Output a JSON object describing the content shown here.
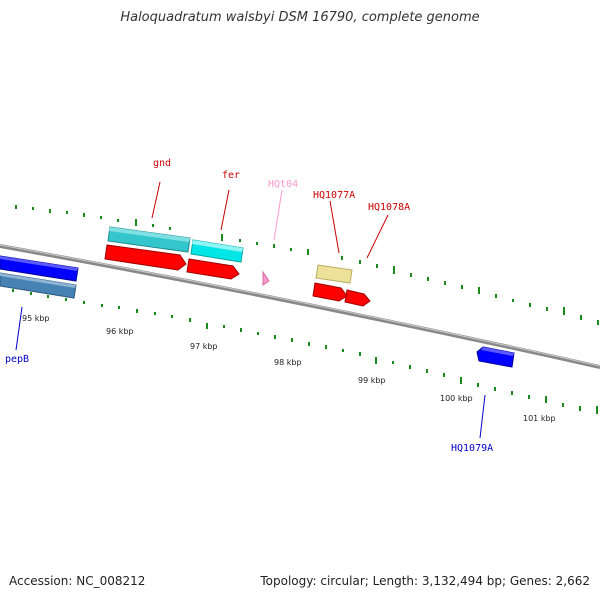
{
  "title": "Haloquadratum walsbyi DSM 16790, complete genome",
  "footer": {
    "accession": "Accession: NC_008212",
    "summary": "Topology: circular; Length: 3,132,494 bp; Genes: 2,662"
  },
  "ticks": [
    "95 kbp",
    "96 kbp",
    "97 kbp",
    "98 kbp",
    "99 kbp",
    "100 kbp",
    "101 kbp"
  ],
  "labels": {
    "gnd": "gnd",
    "fer": "fer",
    "hqt04": "HQt04",
    "hq1077a": "HQ1077A",
    "hq1078a": "HQ1078A",
    "pepb": "pepB",
    "hq1079a": "HQ1079A"
  },
  "colors": {
    "cds": "#ff0000",
    "cds_reverse": "#0000ff",
    "gene_cyan": "#00e5e5",
    "gene_teal": "#33c6cc",
    "trna": "#ff99cc",
    "misc": "#eee19a",
    "steelblue": "#4682b4",
    "gc_tick": "#1a8a1a"
  }
}
